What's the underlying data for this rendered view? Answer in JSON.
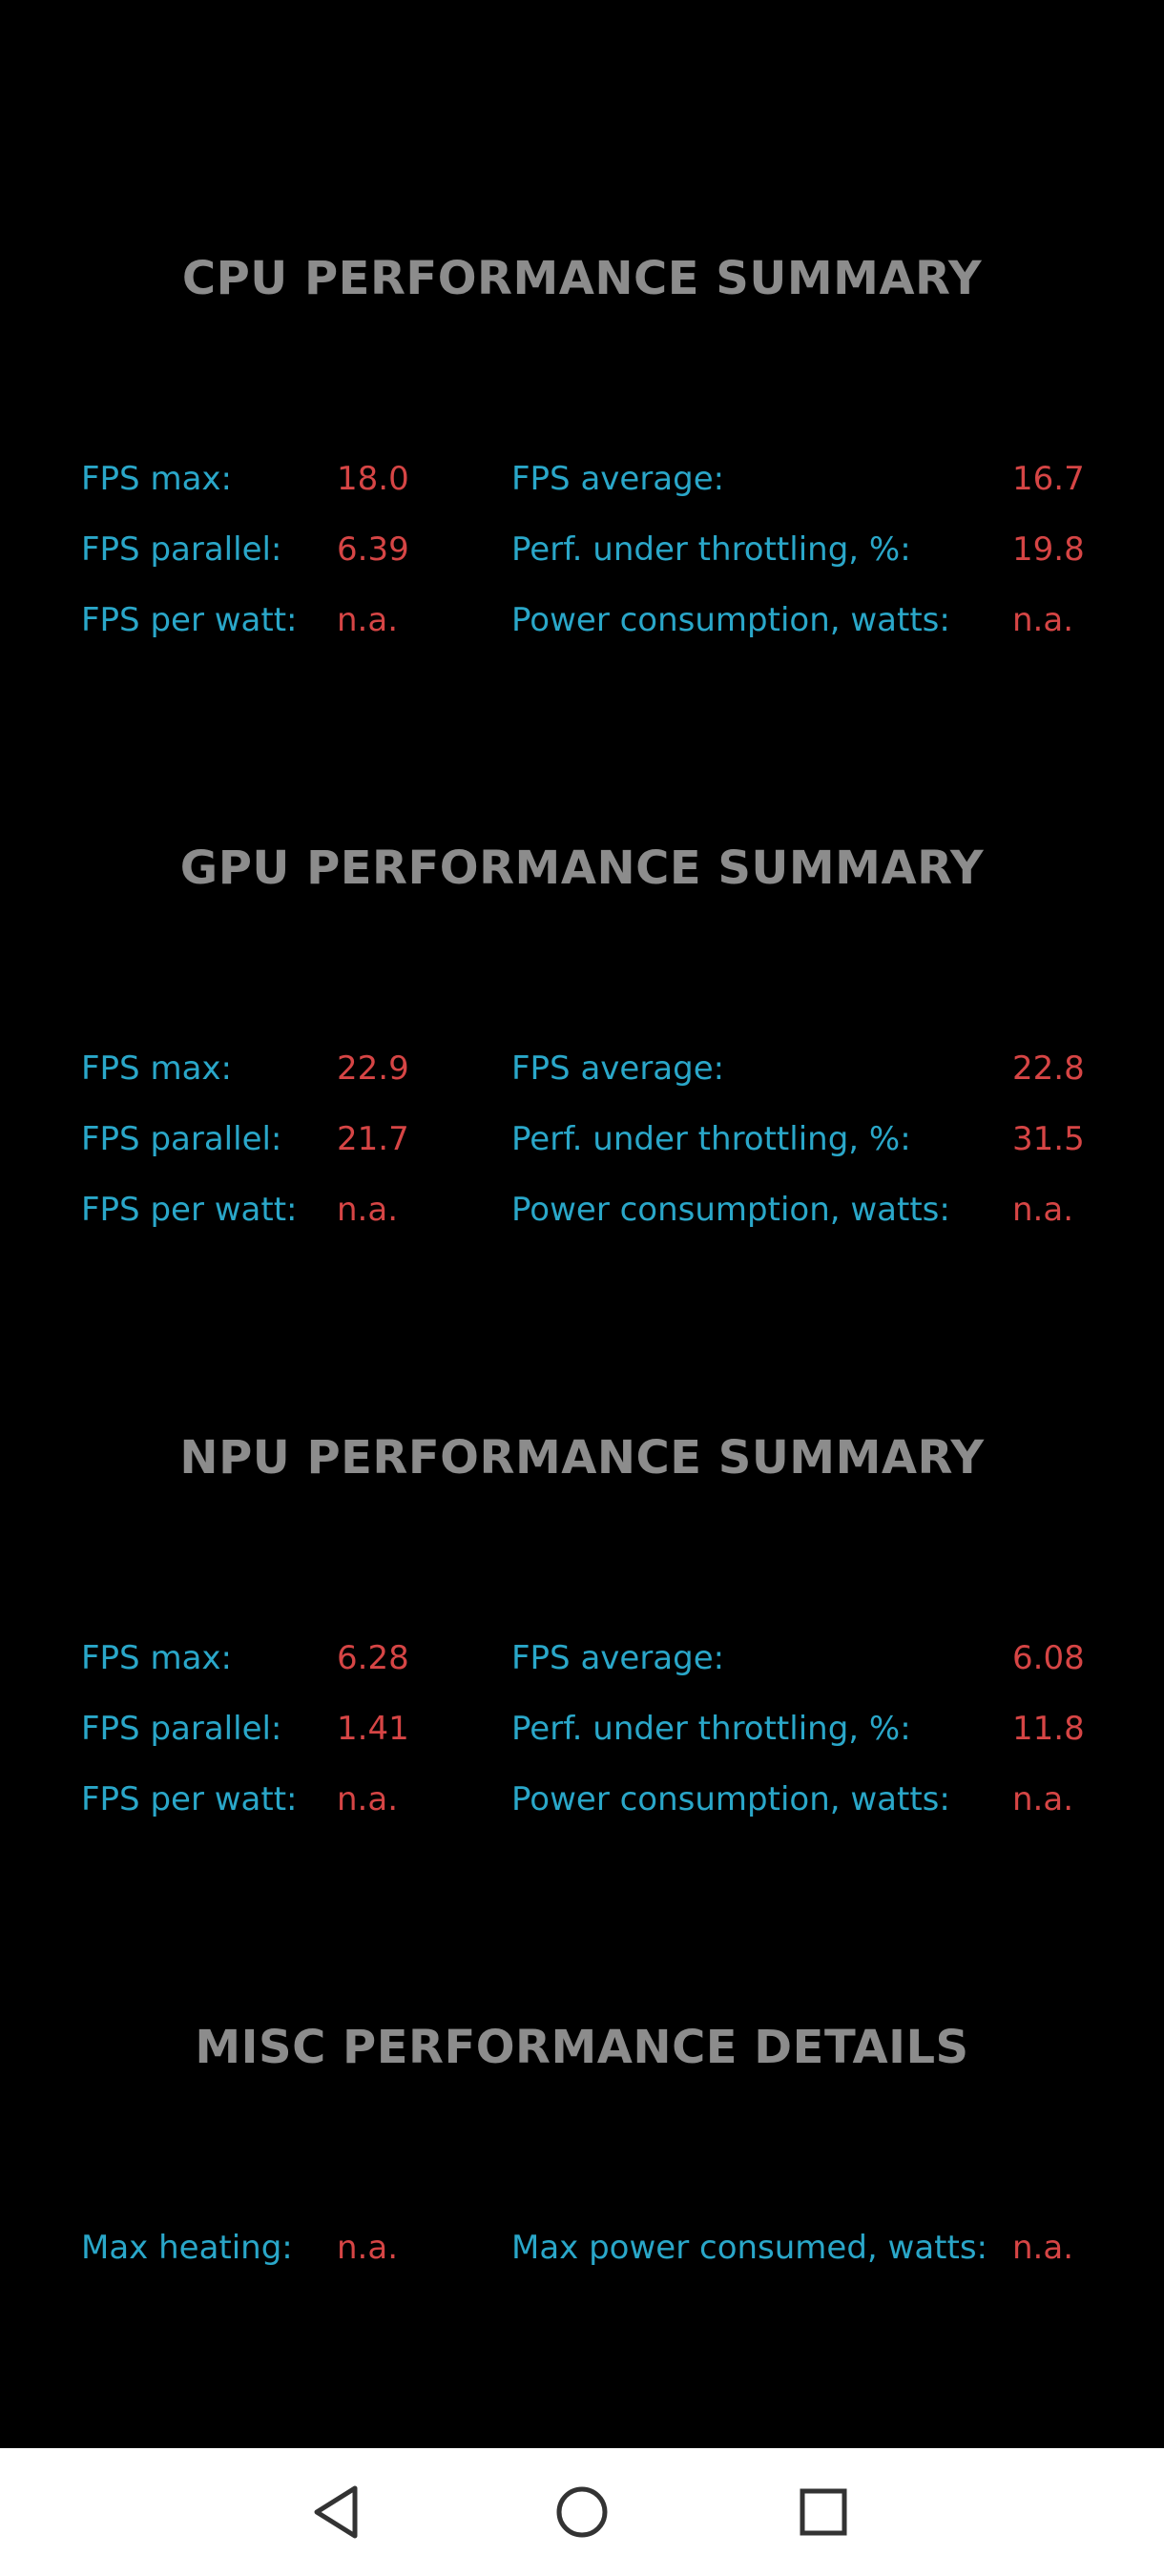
{
  "sections": [
    {
      "title": "CPU PERFORMANCE SUMMARY",
      "rows": [
        {
          "l1": "FPS max:",
          "v1": "18.0",
          "l2": "FPS average:",
          "v2": "16.7"
        },
        {
          "l1": "FPS parallel:",
          "v1": "6.39",
          "l2": "Perf. under throttling, %:",
          "v2": "19.8"
        },
        {
          "l1": "FPS per watt:",
          "v1": "n.a.",
          "l2": "Power consumption, watts:",
          "v2": "n.a."
        }
      ]
    },
    {
      "title": "GPU PERFORMANCE SUMMARY",
      "rows": [
        {
          "l1": "FPS max:",
          "v1": "22.9",
          "l2": "FPS average:",
          "v2": "22.8"
        },
        {
          "l1": "FPS parallel:",
          "v1": "21.7",
          "l2": "Perf. under throttling, %:",
          "v2": "31.5"
        },
        {
          "l1": "FPS per watt:",
          "v1": "n.a.",
          "l2": "Power consumption, watts:",
          "v2": "n.a."
        }
      ]
    },
    {
      "title": "NPU PERFORMANCE SUMMARY",
      "rows": [
        {
          "l1": "FPS max:",
          "v1": "6.28",
          "l2": "FPS average:",
          "v2": "6.08"
        },
        {
          "l1": "FPS parallel:",
          "v1": "1.41",
          "l2": "Perf. under throttling, %:",
          "v2": "11.8"
        },
        {
          "l1": "FPS per watt:",
          "v1": "n.a.",
          "l2": "Power consumption, watts:",
          "v2": "n.a."
        }
      ]
    },
    {
      "title": "MISC PERFORMANCE DETAILS",
      "rows": [
        {
          "l1": "Max heating:",
          "v1": "n.a.",
          "l2": "Max power consumed, watts:",
          "v2": "n.a."
        }
      ]
    }
  ],
  "nav": {
    "back_icon": "back-triangle-icon",
    "home_icon": "home-circle-icon",
    "recents_icon": "recents-square-icon"
  },
  "colors": {
    "background": "#000000",
    "title": "#8c8c8c",
    "label": "#2aa7c9",
    "value": "#d64545",
    "navbar": "#ffffff"
  }
}
